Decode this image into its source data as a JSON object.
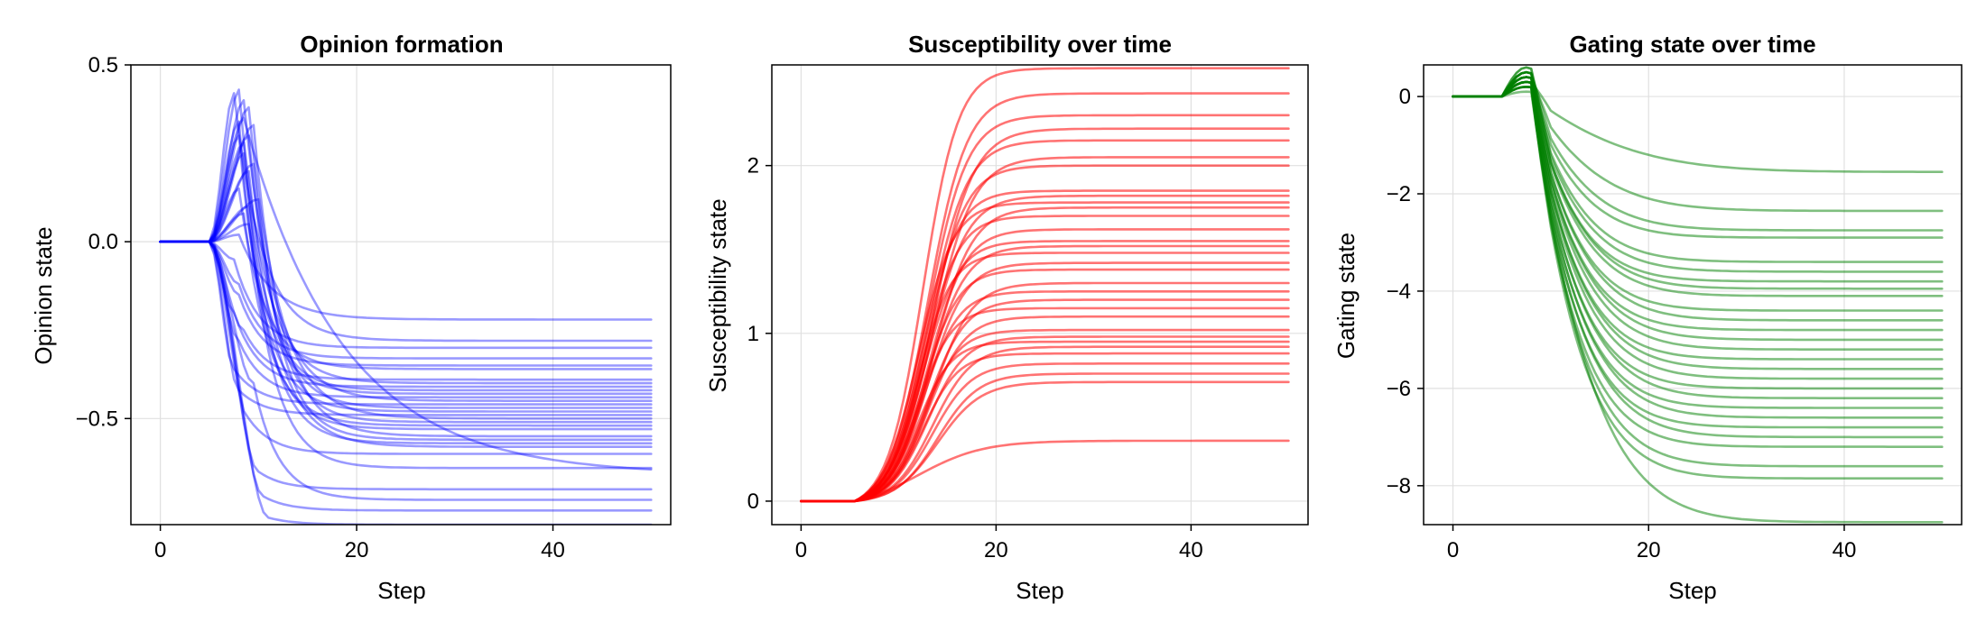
{
  "chart_data": [
    {
      "type": "line",
      "title": "Opinion formation",
      "xlabel": "Step",
      "ylabel": "Opinion state",
      "xlim": [
        -3,
        52
      ],
      "ylim": [
        -0.8,
        0.5
      ],
      "xticks": [
        0,
        20,
        40
      ],
      "xtick_labels": [
        "0",
        "20",
        "40"
      ],
      "yticks": [
        0.5,
        0.0,
        -0.5
      ],
      "ytick_labels": [
        "0.5",
        "0.0",
        "−0.5"
      ],
      "grid": true,
      "legend": "none",
      "color": "#0000ff",
      "line_opacity": 0.4,
      "x": [
        0,
        1,
        2,
        3,
        4,
        5,
        6,
        7,
        8,
        9,
        10,
        11,
        12,
        13,
        14,
        15,
        16,
        17,
        18,
        19,
        20,
        21,
        22,
        23,
        24,
        25,
        26,
        27,
        28,
        29,
        30,
        31,
        32,
        33,
        34,
        35,
        36,
        37,
        38,
        39,
        40,
        41,
        42,
        43,
        44,
        45,
        46,
        47,
        48,
        49,
        50
      ],
      "series": [
        {
          "start": 0.0,
          "rise_step": 6.5,
          "peak_step": 7.5,
          "peak": 0.42,
          "final": -0.28,
          "settle_rate": 0.35
        },
        {
          "start": 0.0,
          "rise_step": 6.5,
          "peak_step": 8.0,
          "peak": 0.43,
          "final": -0.4,
          "settle_rate": 0.38
        },
        {
          "start": 0.0,
          "rise_step": 6.5,
          "peak_step": 8.5,
          "peak": 0.4,
          "final": -0.45,
          "settle_rate": 0.34
        },
        {
          "start": 0.0,
          "rise_step": 6.5,
          "peak_step": 9.0,
          "peak": 0.38,
          "final": -0.5,
          "settle_rate": 0.33
        },
        {
          "start": 0.0,
          "rise_step": 6.5,
          "peak_step": 9.5,
          "peak": 0.33,
          "final": -0.55,
          "settle_rate": 0.36
        },
        {
          "start": 0.0,
          "rise_step": 6.5,
          "peak_step": 8.0,
          "peak": 0.3,
          "final": -0.48,
          "settle_rate": 0.4
        },
        {
          "start": 0.0,
          "rise_step": 6.5,
          "peak_step": 8.5,
          "peak": 0.25,
          "final": -0.42,
          "settle_rate": 0.42
        },
        {
          "start": 0.0,
          "rise_step": 6.5,
          "peak_step": 9.0,
          "peak": 0.2,
          "final": -0.58,
          "settle_rate": 0.35
        },
        {
          "start": 0.0,
          "rise_step": 6.5,
          "peak_step": 8.0,
          "peak": 0.15,
          "final": -0.36,
          "settle_rate": 0.4
        },
        {
          "start": 0.0,
          "rise_step": 6.5,
          "peak_step": 8.5,
          "peak": 0.08,
          "final": -0.52,
          "settle_rate": 0.38
        },
        {
          "start": 0.0,
          "rise_step": 6.5,
          "peak_step": 8.0,
          "peak": 0.02,
          "final": -0.22,
          "settle_rate": 0.3
        },
        {
          "start": 0.0,
          "rise_step": 6.5,
          "peak_step": 7.5,
          "peak": -0.05,
          "final": -0.3,
          "settle_rate": 0.4
        },
        {
          "start": 0.0,
          "rise_step": 6.5,
          "peak_step": 8.0,
          "peak": -0.12,
          "final": -0.33,
          "settle_rate": 0.4
        },
        {
          "start": 0.0,
          "rise_step": 6.5,
          "peak_step": 7.5,
          "peak": -0.2,
          "final": -0.41,
          "settle_rate": 0.4
        },
        {
          "start": 0.0,
          "rise_step": 6.5,
          "peak_step": 8.0,
          "peak": -0.28,
          "final": -0.44,
          "settle_rate": 0.4
        },
        {
          "start": 0.0,
          "rise_step": 6.5,
          "peak_step": 7.5,
          "peak": -0.36,
          "final": -0.46,
          "settle_rate": 0.4
        },
        {
          "start": 0.0,
          "rise_step": 6.5,
          "peak_step": 8.0,
          "peak": -0.42,
          "final": -0.49,
          "settle_rate": 0.4
        },
        {
          "start": 0.0,
          "rise_step": 6.5,
          "peak_step": 9.0,
          "peak": -0.5,
          "final": -0.6,
          "settle_rate": 0.4
        },
        {
          "start": 0.0,
          "rise_step": 6.5,
          "peak_step": 10.0,
          "peak": -0.65,
          "final": -0.7,
          "settle_rate": 0.4
        },
        {
          "start": 0.0,
          "rise_step": 6.5,
          "peak_step": 11.0,
          "peak": -0.78,
          "final": -0.8,
          "settle_rate": 0.4
        },
        {
          "start": 0.0,
          "rise_step": 6.5,
          "peak_step": 10.5,
          "peak": -0.72,
          "final": -0.76,
          "settle_rate": 0.4
        },
        {
          "start": 0.0,
          "rise_step": 6.5,
          "peak_step": 9.5,
          "peak": -0.4,
          "final": -0.73,
          "settle_rate": 0.4
        },
        {
          "start": 0.0,
          "rise_step": 6.5,
          "peak_step": 8.5,
          "peak": 0.35,
          "final": -0.66,
          "settle_rate": 0.1
        },
        {
          "start": 0.0,
          "rise_step": 6.5,
          "peak_step": 9.0,
          "peak": 0.1,
          "final": -0.64,
          "settle_rate": 0.4
        },
        {
          "start": 0.0,
          "rise_step": 6.5,
          "peak_step": 8.5,
          "peak": 0.28,
          "final": -0.57,
          "settle_rate": 0.4
        },
        {
          "start": 0.0,
          "rise_step": 6.5,
          "peak_step": 8.0,
          "peak": 0.34,
          "final": -0.53,
          "settle_rate": 0.4
        },
        {
          "start": 0.0,
          "rise_step": 6.5,
          "peak_step": 9.0,
          "peak": 0.3,
          "final": -0.47,
          "settle_rate": 0.4
        },
        {
          "start": 0.0,
          "rise_step": 6.5,
          "peak_step": 9.5,
          "peak": 0.22,
          "final": -0.51,
          "settle_rate": 0.4
        },
        {
          "start": 0.0,
          "rise_step": 6.5,
          "peak_step": 10.0,
          "peak": 0.12,
          "final": -0.56,
          "settle_rate": 0.4
        },
        {
          "start": 0.0,
          "rise_step": 6.5,
          "peak_step": 8.5,
          "peak": -0.25,
          "final": -0.39,
          "settle_rate": 0.4
        },
        {
          "start": 0.0,
          "rise_step": 6.5,
          "peak_step": 8.0,
          "peak": -0.15,
          "final": -0.35,
          "settle_rate": 0.4
        },
        {
          "start": 0.0,
          "rise_step": 6.5,
          "peak_step": 9.0,
          "peak": 0.05,
          "final": -0.43,
          "settle_rate": 0.4
        }
      ]
    },
    {
      "type": "line",
      "title": "Susceptibility over time",
      "xlabel": "Step",
      "ylabel": "Susceptibility state",
      "xlim": [
        -3,
        52
      ],
      "ylim": [
        -0.14,
        2.6
      ],
      "xticks": [
        0,
        20,
        40
      ],
      "xtick_labels": [
        "0",
        "20",
        "40"
      ],
      "yticks": [
        0,
        1,
        2
      ],
      "ytick_labels": [
        "0",
        "1",
        "2"
      ],
      "grid": true,
      "legend": "none",
      "color": "#ff0000",
      "line_opacity": 0.55,
      "x": [
        0,
        1,
        2,
        3,
        4,
        5,
        6,
        7,
        8,
        9,
        10,
        11,
        12,
        13,
        14,
        15,
        16,
        17,
        18,
        19,
        20,
        21,
        22,
        23,
        24,
        25,
        26,
        27,
        28,
        29,
        30,
        31,
        32,
        33,
        34,
        35,
        36,
        37,
        38,
        39,
        40,
        41,
        42,
        43,
        44,
        45,
        46,
        47,
        48,
        49,
        50
      ],
      "series": [
        {
          "start": 0.0,
          "final": 2.58,
          "midpoint": 12.5,
          "steepness": 0.55
        },
        {
          "start": 0.0,
          "final": 2.43,
          "midpoint": 13.0,
          "steepness": 0.5
        },
        {
          "start": 0.0,
          "final": 2.3,
          "midpoint": 13.0,
          "steepness": 0.5
        },
        {
          "start": 0.0,
          "final": 2.22,
          "midpoint": 13.5,
          "steepness": 0.48
        },
        {
          "start": 0.0,
          "final": 2.15,
          "midpoint": 13.0,
          "steepness": 0.5
        },
        {
          "start": 0.0,
          "final": 2.05,
          "midpoint": 13.5,
          "steepness": 0.48
        },
        {
          "start": 0.0,
          "final": 2.0,
          "midpoint": 13.0,
          "steepness": 0.52
        },
        {
          "start": 0.0,
          "final": 1.85,
          "midpoint": 12.5,
          "steepness": 0.55
        },
        {
          "start": 0.0,
          "final": 1.82,
          "midpoint": 13.0,
          "steepness": 0.5
        },
        {
          "start": 0.0,
          "final": 1.78,
          "midpoint": 12.0,
          "steepness": 0.55
        },
        {
          "start": 0.0,
          "final": 1.75,
          "midpoint": 13.5,
          "steepness": 0.5
        },
        {
          "start": 0.0,
          "final": 1.7,
          "midpoint": 12.5,
          "steepness": 0.55
        },
        {
          "start": 0.0,
          "final": 1.62,
          "midpoint": 13.0,
          "steepness": 0.52
        },
        {
          "start": 0.0,
          "final": 1.55,
          "midpoint": 12.5,
          "steepness": 0.55
        },
        {
          "start": 0.0,
          "final": 1.52,
          "midpoint": 13.0,
          "steepness": 0.52
        },
        {
          "start": 0.0,
          "final": 1.48,
          "midpoint": 12.0,
          "steepness": 0.58
        },
        {
          "start": 0.0,
          "final": 1.42,
          "midpoint": 13.0,
          "steepness": 0.52
        },
        {
          "start": 0.0,
          "final": 1.38,
          "midpoint": 12.5,
          "steepness": 0.55
        },
        {
          "start": 0.0,
          "final": 1.3,
          "midpoint": 13.5,
          "steepness": 0.5
        },
        {
          "start": 0.0,
          "final": 1.25,
          "midpoint": 12.5,
          "steepness": 0.55
        },
        {
          "start": 0.0,
          "final": 1.2,
          "midpoint": 13.0,
          "steepness": 0.52
        },
        {
          "start": 0.0,
          "final": 1.15,
          "midpoint": 12.0,
          "steepness": 0.58
        },
        {
          "start": 0.0,
          "final": 1.1,
          "midpoint": 13.0,
          "steepness": 0.52
        },
        {
          "start": 0.0,
          "final": 1.02,
          "midpoint": 12.5,
          "steepness": 0.55
        },
        {
          "start": 0.0,
          "final": 0.98,
          "midpoint": 13.0,
          "steepness": 0.52
        },
        {
          "start": 0.0,
          "final": 0.95,
          "midpoint": 12.0,
          "steepness": 0.58
        },
        {
          "start": 0.0,
          "final": 0.92,
          "midpoint": 13.5,
          "steepness": 0.5
        },
        {
          "start": 0.0,
          "final": 0.88,
          "midpoint": 12.5,
          "steepness": 0.55
        },
        {
          "start": 0.0,
          "final": 0.82,
          "midpoint": 13.5,
          "steepness": 0.5
        },
        {
          "start": 0.0,
          "final": 0.76,
          "midpoint": 14.0,
          "steepness": 0.48
        },
        {
          "start": 0.0,
          "final": 0.71,
          "midpoint": 14.0,
          "steepness": 0.45
        },
        {
          "start": 0.0,
          "final": 0.36,
          "midpoint": 12.0,
          "steepness": 0.3
        }
      ]
    },
    {
      "type": "line",
      "title": "Gating state over time",
      "xlabel": "Step",
      "ylabel": "Gating state",
      "xlim": [
        -3,
        52
      ],
      "ylim": [
        -8.8,
        0.65
      ],
      "xticks": [
        0,
        20,
        40
      ],
      "xtick_labels": [
        "0",
        "20",
        "40"
      ],
      "yticks": [
        0,
        -2,
        -4,
        -6,
        -8
      ],
      "ytick_labels": [
        "0",
        "−2",
        "−4",
        "−6",
        "−8"
      ],
      "grid": true,
      "legend": "none",
      "color": "#008000",
      "line_opacity": 0.5,
      "x": [
        0,
        1,
        2,
        3,
        4,
        5,
        6,
        7,
        8,
        9,
        10,
        11,
        12,
        13,
        14,
        15,
        16,
        17,
        18,
        19,
        20,
        21,
        22,
        23,
        24,
        25,
        26,
        27,
        28,
        29,
        30,
        31,
        32,
        33,
        34,
        35,
        36,
        37,
        38,
        39,
        40,
        41,
        42,
        43,
        44,
        45,
        46,
        47,
        48,
        49,
        50
      ],
      "series": [
        {
          "start": 0.0,
          "bump": 0.3,
          "final": -1.55,
          "decay_step": 10.0,
          "rate": 0.1
        },
        {
          "start": 0.0,
          "bump": 0.4,
          "final": -2.35,
          "decay_step": 10.0,
          "rate": 0.15
        },
        {
          "start": 0.0,
          "bump": 0.5,
          "final": -2.75,
          "decay_step": 10.0,
          "rate": 0.18
        },
        {
          "start": 0.0,
          "bump": 0.4,
          "final": -2.9,
          "decay_step": 10.0,
          "rate": 0.2
        },
        {
          "start": 0.0,
          "bump": 0.5,
          "final": -3.4,
          "decay_step": 10.0,
          "rate": 0.2
        },
        {
          "start": 0.0,
          "bump": 0.6,
          "final": -3.6,
          "decay_step": 10.0,
          "rate": 0.2
        },
        {
          "start": 0.0,
          "bump": 0.4,
          "final": -3.8,
          "decay_step": 10.0,
          "rate": 0.21
        },
        {
          "start": 0.0,
          "bump": 0.5,
          "final": -3.95,
          "decay_step": 10.0,
          "rate": 0.2
        },
        {
          "start": 0.0,
          "bump": 0.6,
          "final": -4.1,
          "decay_step": 10.0,
          "rate": 0.2
        },
        {
          "start": 0.0,
          "bump": 0.4,
          "final": -4.4,
          "decay_step": 10.0,
          "rate": 0.21
        },
        {
          "start": 0.0,
          "bump": 0.5,
          "final": -4.6,
          "decay_step": 10.0,
          "rate": 0.2
        },
        {
          "start": 0.0,
          "bump": 0.3,
          "final": -4.8,
          "decay_step": 10.0,
          "rate": 0.21
        },
        {
          "start": 0.0,
          "bump": 0.4,
          "final": -5.0,
          "decay_step": 10.0,
          "rate": 0.2
        },
        {
          "start": 0.0,
          "bump": 0.5,
          "final": -5.2,
          "decay_step": 10.0,
          "rate": 0.2
        },
        {
          "start": 0.0,
          "bump": 0.3,
          "final": -5.4,
          "decay_step": 10.0,
          "rate": 0.21
        },
        {
          "start": 0.0,
          "bump": 0.4,
          "final": -5.6,
          "decay_step": 10.0,
          "rate": 0.2
        },
        {
          "start": 0.0,
          "bump": 0.3,
          "final": -5.8,
          "decay_step": 10.0,
          "rate": 0.2
        },
        {
          "start": 0.0,
          "bump": 0.4,
          "final": -6.0,
          "decay_step": 10.0,
          "rate": 0.21
        },
        {
          "start": 0.0,
          "bump": 0.3,
          "final": -6.2,
          "decay_step": 10.0,
          "rate": 0.2
        },
        {
          "start": 0.0,
          "bump": 0.2,
          "final": -6.4,
          "decay_step": 10.0,
          "rate": 0.21
        },
        {
          "start": 0.0,
          "bump": 0.3,
          "final": -6.6,
          "decay_step": 10.0,
          "rate": 0.2
        },
        {
          "start": 0.0,
          "bump": 0.2,
          "final": -6.8,
          "decay_step": 10.0,
          "rate": 0.21
        },
        {
          "start": 0.0,
          "bump": 0.3,
          "final": -7.0,
          "decay_step": 10.0,
          "rate": 0.2
        },
        {
          "start": 0.0,
          "bump": 0.2,
          "final": -7.2,
          "decay_step": 10.0,
          "rate": 0.21
        },
        {
          "start": 0.0,
          "bump": 0.2,
          "final": -7.6,
          "decay_step": 10.0,
          "rate": 0.2
        },
        {
          "start": 0.0,
          "bump": 0.2,
          "final": -7.85,
          "decay_step": 10.0,
          "rate": 0.2
        },
        {
          "start": 0.0,
          "bump": 0.1,
          "final": -8.75,
          "decay_step": 10.0,
          "rate": 0.16
        }
      ]
    }
  ]
}
